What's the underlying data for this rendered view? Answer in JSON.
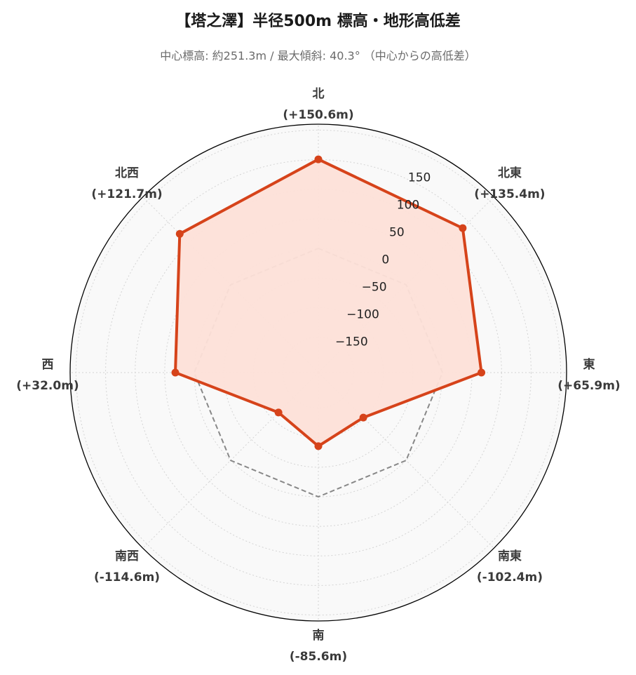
{
  "chart_data": {
    "type": "radar",
    "title": "【塔之澤】半径500m 標高・地形高低差",
    "subtitle": "中心標高: 約251.3m / 最大傾斜: 40.3° （中心からの高低差）",
    "directions": [
      {
        "name": "北",
        "display": "(+150.6m)",
        "value": 150.6
      },
      {
        "name": "北東",
        "display": "(+135.4m)",
        "value": 135.4
      },
      {
        "name": "東",
        "display": "(+65.9m)",
        "value": 65.9
      },
      {
        "name": "南東",
        "display": "(-102.4m)",
        "value": -102.4
      },
      {
        "name": "南",
        "display": "(-85.6m)",
        "value": -85.6
      },
      {
        "name": "南西",
        "display": "(-114.6m)",
        "value": -114.6
      },
      {
        "name": "西",
        "display": "(+32.0m)",
        "value": 32.0
      },
      {
        "name": "北西",
        "display": "(+121.7m)",
        "value": 121.7
      }
    ],
    "reference_value": 0,
    "r_ticks": [
      -150,
      -100,
      -50,
      0,
      50,
      100,
      150
    ],
    "r_tick_labels": [
      "−150",
      "−100",
      "−50",
      "0",
      "50",
      "100",
      "150"
    ],
    "r_range": [
      -210,
      210
    ],
    "grid": true,
    "colors": {
      "series_line": "#d6431a",
      "series_fill": "#fde0d8",
      "reference_line": "#888888",
      "plot_background": "#f9f9f9",
      "grid": "#d4d4d4",
      "outer_ring": "#000000"
    }
  }
}
